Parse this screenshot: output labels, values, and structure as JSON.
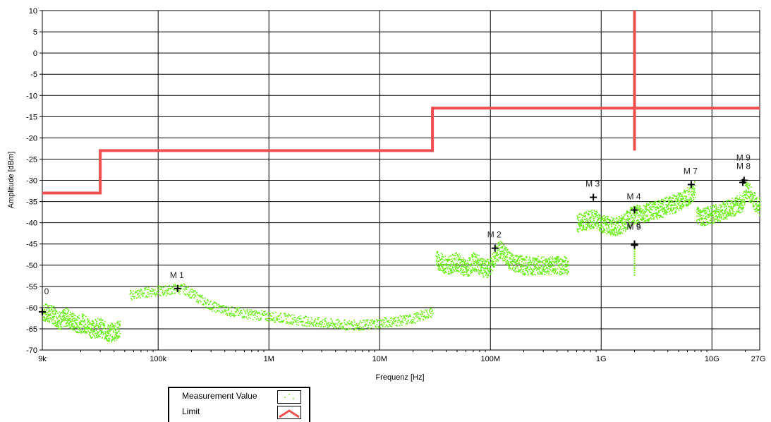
{
  "chart_data": {
    "type": "line",
    "title": "",
    "xlabel": "Frequenz [Hz]",
    "ylabel": "Amplitude [dBm]",
    "xscale": "log",
    "xlim": [
      9000,
      27000000000
    ],
    "ylim": [
      -70,
      10
    ],
    "yticks": [
      10,
      5,
      0,
      -5,
      -10,
      -15,
      -20,
      -25,
      -30,
      -35,
      -40,
      -45,
      -50,
      -55,
      -60,
      -65,
      -70
    ],
    "xticks": [
      {
        "value": 9000,
        "label": "9k"
      },
      {
        "value": 100000,
        "label": "100k"
      },
      {
        "value": 1000000,
        "label": "1M"
      },
      {
        "value": 10000000,
        "label": "10M"
      },
      {
        "value": 100000000,
        "label": "100M"
      },
      {
        "value": 1000000000,
        "label": "1G"
      },
      {
        "value": 10000000000,
        "label": "10G"
      },
      {
        "value": 27000000000,
        "label": "27G"
      }
    ],
    "grid": true,
    "legend_position": "bottom-left",
    "series": [
      {
        "name": "Measurement Value",
        "color": "#66ee11",
        "style": "scatter",
        "segments": [
          {
            "x": [
              9000,
              11000,
              13000,
              15000,
              18000,
              21000,
              25000,
              30000,
              35000,
              40000,
              45000
            ],
            "y": [
              -61,
              -61.5,
              -63,
              -62,
              -64,
              -63.5,
              -65,
              -64.5,
              -66,
              -65.5,
              -65
            ]
          },
          {
            "x": [
              55000,
              70000,
              90000,
              110000,
              140000,
              170000,
              210000,
              260000,
              300000,
              400000,
              500000,
              700000,
              1000000,
              1500000,
              2000000,
              3000000,
              5000000,
              7000000,
              10000000,
              15000000,
              20000000,
              25000000,
              30000000
            ],
            "y": [
              -57,
              -56.5,
              -56,
              -56,
              -55.5,
              -55.5,
              -57,
              -58.5,
              -59.5,
              -60.5,
              -61,
              -61.5,
              -62,
              -62.5,
              -63,
              -63.5,
              -64,
              -64,
              -63.5,
              -63,
              -62.5,
              -61.5,
              -61
            ]
          },
          {
            "x": [
              32000000,
              40000000,
              50000000,
              60000000,
              70000000,
              80000000,
              90000000,
              100000000,
              120000000,
              150000000,
              200000000,
              300000000,
              400000000,
              500000000
            ],
            "y": [
              -48.5,
              -50,
              -49,
              -51,
              -49,
              -50,
              -51,
              -50,
              -46,
              -49,
              -50,
              -50,
              -50,
              -50
            ]
          },
          {
            "x": [
              600000000,
              700000000,
              850000000,
              1000000000,
              1300000000,
              1600000000,
              1800000000,
              2000000000,
              2500000000,
              3500000000,
              5000000000,
              6500000000,
              7000000000
            ],
            "y": [
              -40,
              -39.5,
              -39,
              -40,
              -41,
              -40,
              -38.5,
              -38,
              -37.5,
              -36.5,
              -35,
              -33,
              -32
            ]
          },
          {
            "x": [
              7200000000,
              8000000000,
              10000000000,
              13000000000,
              16000000000,
              19000000000,
              20000000000,
              22000000000,
              24000000000,
              27000000000
            ],
            "y": [
              -38,
              -38.5,
              -38,
              -37,
              -36,
              -35,
              -32,
              -33,
              -35,
              -36
            ]
          }
        ]
      },
      {
        "name": "Limit",
        "color": "#f05050",
        "style": "step",
        "x": [
          9000,
          30000,
          30000,
          30000000,
          30000000,
          27000000000
        ],
        "y": [
          -33,
          -33,
          -23,
          -23,
          -13,
          -13
        ]
      }
    ],
    "cursor_line": {
      "color": "#f05050",
      "x": 2000000000,
      "y_from": 10,
      "y_to": -23
    },
    "markers": [
      {
        "label": "0",
        "x": 9000,
        "y": -61
      },
      {
        "label": "M 1",
        "x": 150000,
        "y": -55.5
      },
      {
        "label": "M 2",
        "x": 110000000,
        "y": -46
      },
      {
        "label": "M 3",
        "x": 850000000,
        "y": -34
      },
      {
        "label": "M 4",
        "x": 2000000000,
        "y": -37
      },
      {
        "label": "M 5",
        "x": 2000000000,
        "y": -45.3
      },
      {
        "label": "M 6",
        "x": 2000000000,
        "y": -45
      },
      {
        "label": "M 7",
        "x": 6500000000,
        "y": -31
      },
      {
        "label": "M 8",
        "x": 19000000000,
        "y": -30.5
      },
      {
        "label": "M 9",
        "x": 19500000000,
        "y": -30
      }
    ]
  },
  "legend": {
    "items": [
      {
        "label": "Measurement Value",
        "color": "#66ee11"
      },
      {
        "label": "Limit",
        "color": "#f05050"
      }
    ]
  }
}
